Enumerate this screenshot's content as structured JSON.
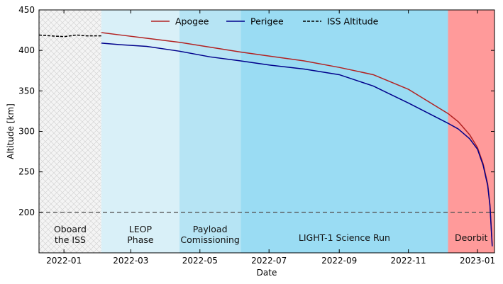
{
  "chart_data": {
    "type": "line",
    "title": "",
    "xlabel": "Date",
    "ylabel": "Altitude [km]",
    "xlim": [
      "2021-12-10",
      "2023-01-16"
    ],
    "ylim": [
      150,
      450
    ],
    "x_ticks": [
      "2022-01",
      "2022-03",
      "2022-05",
      "2022-07",
      "2022-09",
      "2022-11",
      "2023-01"
    ],
    "x_tick_dates": [
      "2022-01-01",
      "2022-03-01",
      "2022-05-01",
      "2022-07-01",
      "2022-09-01",
      "2022-11-01",
      "2023-01-01"
    ],
    "y_ticks": [
      200,
      250,
      300,
      350,
      400,
      450
    ],
    "reference_line": {
      "y": 200,
      "style": "dashed",
      "color": "#555555"
    },
    "phases": [
      {
        "line1": "Oboard",
        "line2": "the ISS",
        "start": "2021-12-10",
        "end": "2022-02-03",
        "color": "#f2f2f2",
        "hatch": true
      },
      {
        "line1": "LEOP",
        "line2": "Phase",
        "start": "2022-02-03",
        "end": "2022-04-13",
        "color": "#d9f0f8",
        "hatch": false
      },
      {
        "line1": "Payload",
        "line2": "Comissioning",
        "start": "2022-04-13",
        "end": "2022-06-06",
        "color": "#b6e4f4",
        "hatch": false
      },
      {
        "line1": "LIGHT-1 Science Run",
        "line2": "",
        "start": "2022-06-06",
        "end": "2022-12-06",
        "color": "#9adcf3",
        "hatch": false
      },
      {
        "line1": "Deorbit",
        "line2": "",
        "start": "2022-12-06",
        "end": "2023-01-16",
        "color": "#ff9a9a",
        "hatch": false
      }
    ],
    "series": [
      {
        "name": "Apogee",
        "color": "#b22222",
        "style": "solid",
        "x": [
          "2022-02-03",
          "2022-02-20",
          "2022-03-15",
          "2022-04-13",
          "2022-05-10",
          "2022-06-06",
          "2022-07-01",
          "2022-08-01",
          "2022-09-01",
          "2022-10-01",
          "2022-11-01",
          "2022-12-06",
          "2022-12-15",
          "2022-12-25",
          "2023-01-01",
          "2023-01-06",
          "2023-01-10",
          "2023-01-12",
          "2023-01-14"
        ],
        "values": [
          422,
          419,
          415,
          410,
          404,
          398,
          393,
          387,
          379,
          370,
          352,
          322,
          312,
          296,
          280,
          260,
          235,
          210,
          160
        ]
      },
      {
        "name": "Perigee",
        "color": "#00008b",
        "style": "solid",
        "x": [
          "2022-02-03",
          "2022-02-20",
          "2022-03-15",
          "2022-04-13",
          "2022-05-10",
          "2022-06-06",
          "2022-07-01",
          "2022-08-01",
          "2022-09-01",
          "2022-10-01",
          "2022-11-01",
          "2022-12-06",
          "2022-12-15",
          "2022-12-25",
          "2023-01-01",
          "2023-01-06",
          "2023-01-10",
          "2023-01-12",
          "2023-01-14"
        ],
        "values": [
          409,
          407,
          405,
          399,
          392,
          387,
          382,
          377,
          370,
          356,
          335,
          310,
          303,
          291,
          278,
          258,
          233,
          208,
          158
        ]
      },
      {
        "name": "ISS Altitude",
        "color": "#000000",
        "style": "dashed",
        "x": [
          "2021-12-10",
          "2021-12-20",
          "2022-01-01",
          "2022-01-12",
          "2022-01-20",
          "2022-02-03"
        ],
        "values": [
          419,
          418,
          417,
          419,
          418,
          418
        ]
      }
    ],
    "legend": {
      "position": "top-center",
      "entries": [
        "Apogee",
        "Perigee",
        "ISS Altitude"
      ]
    }
  }
}
